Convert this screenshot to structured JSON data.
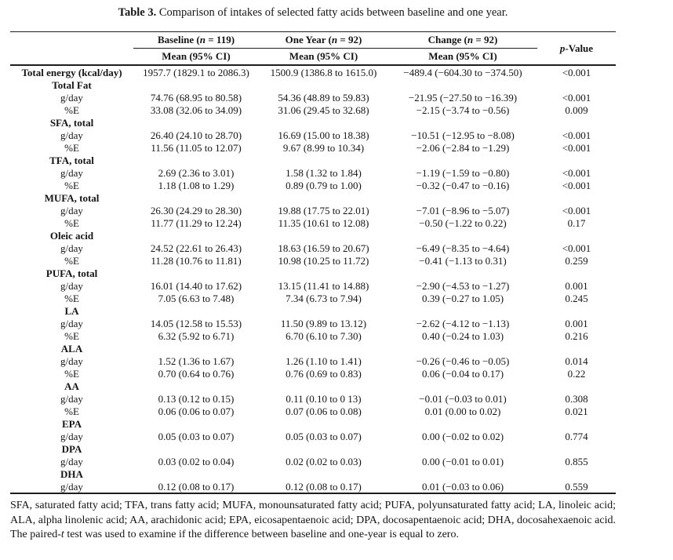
{
  "caption": {
    "label": "Table 3.",
    "text": " Comparison of intakes of selected fatty acids between baseline and one year."
  },
  "table": {
    "header": {
      "col_groups": [
        {
          "before": "Baseline (",
          "italic": "n",
          "after": " = 119)"
        },
        {
          "before": "One Year (",
          "italic": "n",
          "after": " = 92)"
        },
        {
          "before": "Change (",
          "italic": "n",
          "after": " = 92)"
        }
      ],
      "subheader": "Mean (95% CI)",
      "p_value": {
        "italic": "p",
        "after": "-Value"
      }
    },
    "rows": [
      {
        "type": "main",
        "label": "Total energy (kcal/day)",
        "baseline": "1957.7 (1829.1 to 2086.3)",
        "one_year": "1500.9 (1386.8 to 1615.0)",
        "change": "−489.4 (−604.30 to −374.50)",
        "p": "<0.001"
      },
      {
        "type": "group",
        "label": "Total Fat"
      },
      {
        "type": "unit",
        "label": "g/day",
        "baseline": "74.76 (68.95 to 80.58)",
        "one_year": "54.36 (48.89 to 59.83)",
        "change": "−21.95 (−27.50 to −16.39)",
        "p": "<0.001"
      },
      {
        "type": "unit",
        "label": "%E",
        "baseline": "33.08 (32.06 to 34.09)",
        "one_year": "31.06 (29.45 to 32.68)",
        "change": "−2.15 (−3.74 to −0.56)",
        "p": "0.009"
      },
      {
        "type": "group",
        "label": "SFA, total"
      },
      {
        "type": "unit",
        "label": "g/day",
        "baseline": "26.40 (24.10 to 28.70)",
        "one_year": "16.69 (15.00 to 18.38)",
        "change": "−10.51 (−12.95 to −8.08)",
        "p": "<0.001"
      },
      {
        "type": "unit",
        "label": "%E",
        "baseline": "11.56 (11.05 to 12.07)",
        "one_year": "9.67 (8.99 to 10.34)",
        "change": "−2.06 (−2.84 to −1.29)",
        "p": "<0.001"
      },
      {
        "type": "group",
        "label": "TFA, total"
      },
      {
        "type": "unit",
        "label": "g/day",
        "baseline": "2.69 (2.36 to 3.01)",
        "one_year": "1.58 (1.32 to 1.84)",
        "change": "−1.19 (−1.59 to −0.80)",
        "p": "<0.001"
      },
      {
        "type": "unit",
        "label": "%E",
        "baseline": "1.18 (1.08 to 1.29)",
        "one_year": "0.89 (0.79 to 1.00)",
        "change": "−0.32 (−0.47 to −0.16)",
        "p": "<0.001"
      },
      {
        "type": "group",
        "label": "MUFA, total"
      },
      {
        "type": "unit",
        "label": "g/day",
        "baseline": "26.30 (24.29 to 28.30)",
        "one_year": "19.88 (17.75 to 22.01)",
        "change": "−7.01 (−8.96 to −5.07)",
        "p": "<0.001"
      },
      {
        "type": "unit",
        "label": "%E",
        "baseline": "11.77 (11.29 to 12.24)",
        "one_year": "11.35 (10.61 to 12.08)",
        "change": "−0.50 (−1.22 to 0.22)",
        "p": "0.17"
      },
      {
        "type": "group",
        "label": "Oleic acid"
      },
      {
        "type": "unit",
        "label": "g/day",
        "baseline": "24.52 (22.61 to 26.43)",
        "one_year": "18.63 (16.59 to 20.67)",
        "change": "−6.49 (−8.35 to −4.64)",
        "p": "<0.001"
      },
      {
        "type": "unit",
        "label": "%E",
        "baseline": "11.28 (10.76 to 11.81)",
        "one_year": "10.98 (10.25 to 11.72)",
        "change": "−0.41 (−1.13 to 0.31)",
        "p": "0.259"
      },
      {
        "type": "group",
        "label": "PUFA, total"
      },
      {
        "type": "unit",
        "label": "g/day",
        "baseline": "16.01 (14.40 to 17.62)",
        "one_year": "13.15 (11.41 to 14.88)",
        "change": "−2.90 (−4.53 to −1.27)",
        "p": "0.001"
      },
      {
        "type": "unit",
        "label": "%E",
        "baseline": "7.05 (6.63 to 7.48)",
        "one_year": "7.34 (6.73 to 7.94)",
        "change": "0.39 (−0.27 to 1.05)",
        "p": "0.245"
      },
      {
        "type": "group",
        "label": "LA"
      },
      {
        "type": "unit",
        "label": "g/day",
        "baseline": "14.05 (12.58 to 15.53)",
        "one_year": "11.50 (9.89 to 13.12)",
        "change": "−2.62 (−4.12 to −1.13)",
        "p": "0.001"
      },
      {
        "type": "unit",
        "label": "%E",
        "baseline": "6.32 (5.92 to 6.71)",
        "one_year": "6.70 (6.10 to 7.30)",
        "change": "0.40 (−0.24 to 1.03)",
        "p": "0.216"
      },
      {
        "type": "group",
        "label": "ALA"
      },
      {
        "type": "unit",
        "label": "g/day",
        "baseline": "1.52 (1.36 to 1.67)",
        "one_year": "1.26 (1.10 to 1.41)",
        "change": "−0.26 (−0.46 to −0.05)",
        "p": "0.014"
      },
      {
        "type": "unit",
        "label": "%E",
        "baseline": "0.70 (0.64 to 0.76)",
        "one_year": "0.76 (0.69 to 0.83)",
        "change": "0.06 (−0.04 to 0.17)",
        "p": "0.22"
      },
      {
        "type": "group",
        "label": "AA"
      },
      {
        "type": "unit",
        "label": "g/day",
        "baseline": "0.13 (0.12 to 0.15)",
        "one_year": "0.11 (0.10 to 0 13)",
        "change": "−0.01 (−0.03 to 0.01)",
        "p": "0.308"
      },
      {
        "type": "unit",
        "label": "%E",
        "baseline": "0.06 (0.06 to 0.07)",
        "one_year": "0.07 (0.06 to 0.08)",
        "change": "0.01 (0.00 to 0.02)",
        "p": "0.021"
      },
      {
        "type": "group",
        "label": "EPA"
      },
      {
        "type": "unit",
        "label": "g/day",
        "baseline": "0.05 (0.03 to 0.07)",
        "one_year": "0.05 (0.03 to 0.07)",
        "change": "0.00 (−0.02 to 0.02)",
        "p": "0.774"
      },
      {
        "type": "group",
        "label": "DPA"
      },
      {
        "type": "unit",
        "label": "g/day",
        "baseline": "0.03 (0.02 to 0.04)",
        "one_year": "0.02 (0.02 to 0.03)",
        "change": "0.00 (−0.01 to 0.01)",
        "p": "0.855"
      },
      {
        "type": "group",
        "label": "DHA"
      },
      {
        "type": "unit",
        "label": "g/day",
        "baseline": "0.12 (0.08 to 0.17)",
        "one_year": "0.12 (0.08 to 0.17)",
        "change": "0.01 (−0.03 to 0.06)",
        "p": "0.559"
      }
    ]
  },
  "footnote": {
    "part1": "SFA, saturated fatty acid; TFA, trans fatty acid; MUFA, monounsaturated fatty acid; PUFA, polyunsaturated fatty acid; LA, linoleic acid; ALA, alpha linolenic acid; AA, arachidonic acid; EPA, eicosapentaenoic acid; DPA, docosapentaenoic acid; DHA, docosahexaenoic acid. The paired-",
    "italic": "t",
    "part2": " test was used to examine if the difference between baseline and one-year is equal to zero."
  }
}
